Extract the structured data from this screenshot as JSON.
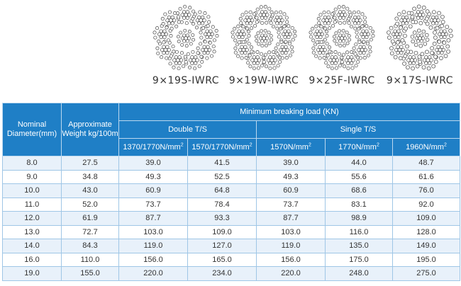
{
  "ropes": [
    {
      "label": "9×19S-IWRC"
    },
    {
      "label": "9×19W-IWRC"
    },
    {
      "label": "9×25F-IWRC"
    },
    {
      "label": "9×17S-IWRC"
    }
  ],
  "table": {
    "col_diameter": "Nominal Diameter(mm)",
    "col_weight": "Approximate Weight kg/100m",
    "group_title": "Minimum breaking load  (KN)",
    "double_ts": "Double T/S",
    "single_ts": "Single T/S",
    "sub": {
      "d1": "1370/1770N/mm",
      "d2": "1570/1770N/mm",
      "s1": "1570N/mm",
      "s2": "1770N/mm",
      "s3": "1960N/mm",
      "sup": "2"
    },
    "rows": [
      [
        "8.0",
        "27.5",
        "39.0",
        "41.5",
        "39.0",
        "44.0",
        "48.7"
      ],
      [
        "9.0",
        "34.8",
        "49.3",
        "52.5",
        "49.3",
        "55.6",
        "61.6"
      ],
      [
        "10.0",
        "43.0",
        "60.9",
        "64.8",
        "60.9",
        "68.6",
        "76.0"
      ],
      [
        "11.0",
        "52.0",
        "73.7",
        "78.4",
        "73.7",
        "83.1",
        "92.0"
      ],
      [
        "12.0",
        "61.9",
        "87.7",
        "93.3",
        "87.7",
        "98.9",
        "109.0"
      ],
      [
        "13.0",
        "72.7",
        "103.0",
        "109.0",
        "103.0",
        "116.0",
        "128.0"
      ],
      [
        "14.0",
        "84.3",
        "119.0",
        "127.0",
        "119.0",
        "135.0",
        "149.0"
      ],
      [
        "16.0",
        "110.0",
        "156.0",
        "165.0",
        "156.0",
        "175.0",
        "195.0"
      ],
      [
        "19.0",
        "155.0",
        "220.0",
        "234.0",
        "220.0",
        "248.0",
        "275.0"
      ]
    ]
  }
}
